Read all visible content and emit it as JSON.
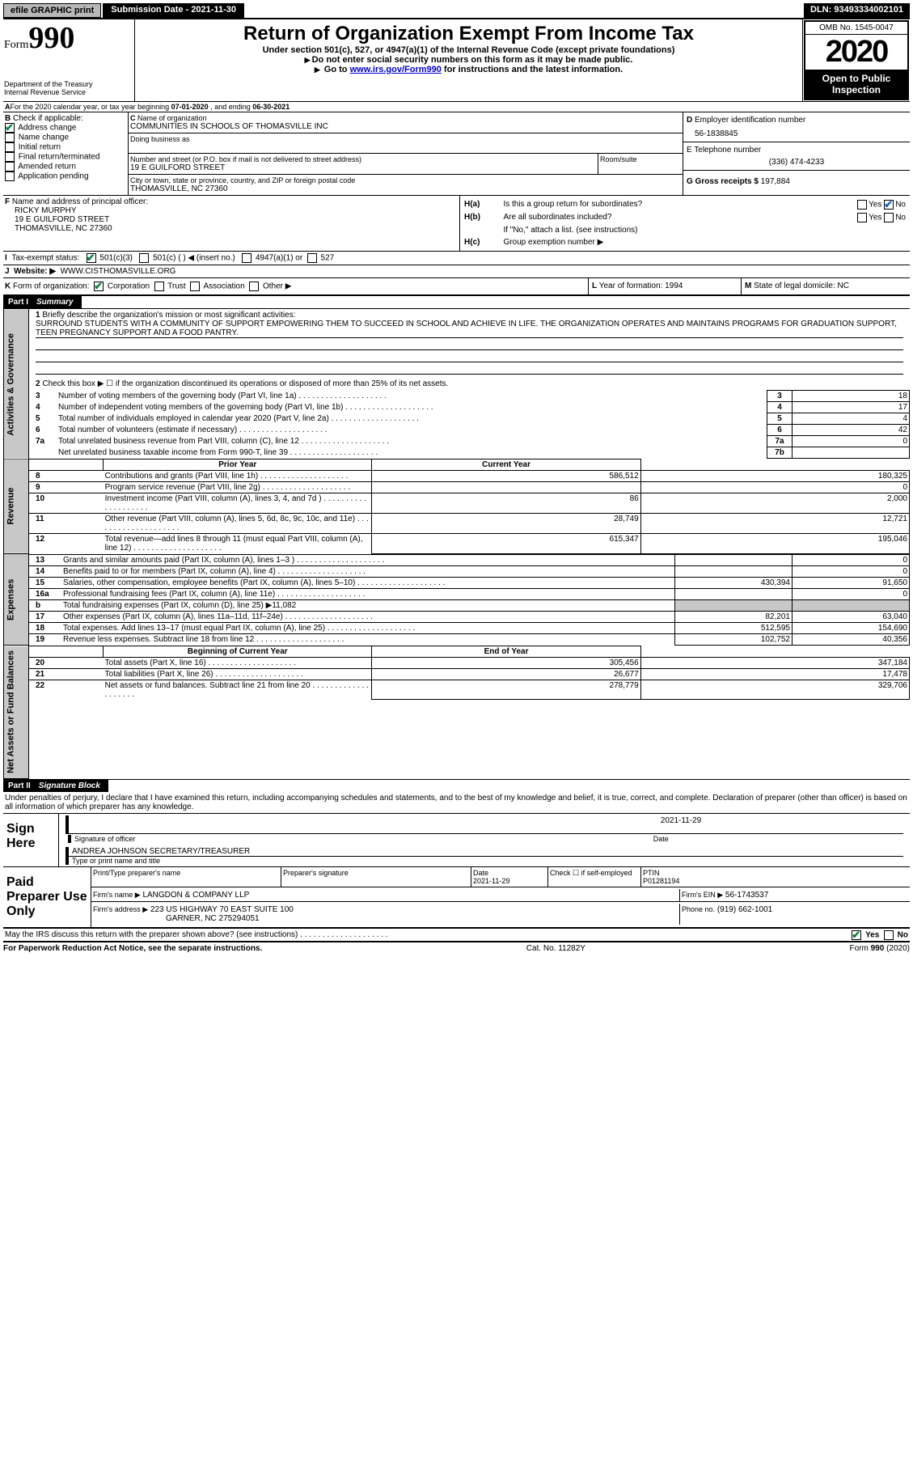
{
  "topbar": {
    "efile_label": "efile GRAPHIC print",
    "submission_label": "Submission Date - 2021-11-30",
    "dln_label": "DLN: 93493334002101"
  },
  "header": {
    "form_word": "Form",
    "form_num": "990",
    "dept": "Department of the Treasury",
    "irs": "Internal Revenue Service",
    "title": "Return of Organization Exempt From Income Tax",
    "subtitle": "Under section 501(c), 527, or 4947(a)(1) of the Internal Revenue Code (except private foundations)",
    "instr1": "Do not enter social security numbers on this form as it may be made public.",
    "instr2_pre": "Go to ",
    "instr2_link": "www.irs.gov/Form990",
    "instr2_post": " for instructions and the latest information.",
    "omb": "OMB No. 1545-0047",
    "year": "2020",
    "open": "Open to Public Inspection"
  },
  "periodA": {
    "text_pre": "For the 2020 calendar year, or tax year beginning ",
    "begin": "07-01-2020",
    "mid": " , and ending ",
    "end": "06-30-2021"
  },
  "boxB": {
    "label": "Check if applicable:",
    "items": [
      {
        "label": "Address change",
        "checked": true
      },
      {
        "label": "Name change",
        "checked": false
      },
      {
        "label": "Initial return",
        "checked": false
      },
      {
        "label": "Final return/terminated",
        "checked": false
      },
      {
        "label": "Amended return",
        "checked": false
      },
      {
        "label": "Application pending",
        "checked": false
      }
    ]
  },
  "boxC": {
    "name_label": "Name of organization",
    "name": "COMMUNITIES IN SCHOOLS OF THOMASVILLE INC",
    "dba_label": "Doing business as",
    "addr_label": "Number and street (or P.O. box if mail is not delivered to street address)",
    "room_label": "Room/suite",
    "addr": "19 E GUILFORD STREET",
    "city_label": "City or town, state or province, country, and ZIP or foreign postal code",
    "city": "THOMASVILLE, NC  27360"
  },
  "boxD": {
    "label": "Employer identification number",
    "val": "56-1838845"
  },
  "boxE": {
    "label": "E Telephone number",
    "val": "(336) 474-4233"
  },
  "boxG": {
    "label": "G Gross receipts $",
    "val": "197,884"
  },
  "boxF": {
    "label": "Name and address of principal officer:",
    "name": "RICKY MURPHY",
    "addr": "19 E GUILFORD STREET",
    "city": "THOMASVILLE, NC  27360"
  },
  "boxH": {
    "a_label": "Is this a group return for subordinates?",
    "a_yes": "Yes",
    "a_no": "No",
    "a_checked": "No",
    "b_label": "Are all subordinates included?",
    "b_note": "If \"No,\" attach a list. (see instructions)",
    "c_label": "Group exemption number ▶"
  },
  "rowI": {
    "label": "Tax-exempt status:",
    "opt1": "501(c)(3)",
    "opt1_checked": true,
    "opt2": "501(c) (   ) ◀ (insert no.)",
    "opt3": "4947(a)(1) or",
    "opt4": "527"
  },
  "rowJ": {
    "label": "Website: ▶",
    "val": "WWW.CISTHOMASVILLE.ORG"
  },
  "rowK": {
    "label": "Form of organization:",
    "corp": "Corporation",
    "corp_checked": true,
    "trust": "Trust",
    "assoc": "Association",
    "other": "Other ▶"
  },
  "rowL": {
    "label": "Year of formation:",
    "val": "1994"
  },
  "rowM": {
    "label": "State of legal domicile:",
    "val": "NC"
  },
  "part1": {
    "hdr": "Part I",
    "title": "Summary"
  },
  "p1": {
    "q1": "Briefly describe the organization's mission or most significant activities:",
    "mission": "SURROUND STUDENTS WITH A COMMUNITY OF SUPPORT EMPOWERING THEM TO SUCCEED IN SCHOOL AND ACHIEVE IN LIFE. THE ORGANIZATION OPERATES AND MAINTAINS PROGRAMS FOR GRADUATION SUPPORT, TEEN PREGNANCY SUPPORT AND A FOOD PANTRY.",
    "q2": "Check this box ▶ ☐  if the organization discontinued its operations or disposed of more than 25% of its net assets.",
    "rows": [
      {
        "n": "3",
        "label": "Number of voting members of the governing body (Part VI, line 1a)",
        "box": "3",
        "val": "18"
      },
      {
        "n": "4",
        "label": "Number of independent voting members of the governing body (Part VI, line 1b)",
        "box": "4",
        "val": "17"
      },
      {
        "n": "5",
        "label": "Total number of individuals employed in calendar year 2020 (Part V, line 2a)",
        "box": "5",
        "val": "4"
      },
      {
        "n": "6",
        "label": "Total number of volunteers (estimate if necessary)",
        "box": "6",
        "val": "42"
      },
      {
        "n": "7a",
        "label": "Total unrelated business revenue from Part VIII, column (C), line 12",
        "box": "7a",
        "val": "0"
      },
      {
        "n": "",
        "label": "Net unrelated business taxable income from Form 990-T, line 39",
        "box": "7b",
        "val": ""
      }
    ],
    "col_prior": "Prior Year",
    "col_curr": "Current Year",
    "revenue": [
      {
        "n": "8",
        "label": "Contributions and grants (Part VIII, line 1h)",
        "p": "586,512",
        "c": "180,325"
      },
      {
        "n": "9",
        "label": "Program service revenue (Part VIII, line 2g)",
        "p": "",
        "c": "0"
      },
      {
        "n": "10",
        "label": "Investment income (Part VIII, column (A), lines 3, 4, and 7d )",
        "p": "86",
        "c": "2,000"
      },
      {
        "n": "11",
        "label": "Other revenue (Part VIII, column (A), lines 5, 6d, 8c, 9c, 10c, and 11e)",
        "p": "28,749",
        "c": "12,721"
      },
      {
        "n": "12",
        "label": "Total revenue—add lines 8 through 11 (must equal Part VIII, column (A), line 12)",
        "p": "615,347",
        "c": "195,046"
      }
    ],
    "expenses": [
      {
        "n": "13",
        "label": "Grants and similar amounts paid (Part IX, column (A), lines 1–3 )",
        "p": "",
        "c": "0"
      },
      {
        "n": "14",
        "label": "Benefits paid to or for members (Part IX, column (A), line 4)",
        "p": "",
        "c": "0"
      },
      {
        "n": "15",
        "label": "Salaries, other compensation, employee benefits (Part IX, column (A), lines 5–10)",
        "p": "430,394",
        "c": "91,650"
      },
      {
        "n": "16a",
        "label": "Professional fundraising fees (Part IX, column (A), line 11e)",
        "p": "",
        "c": "0"
      },
      {
        "n": "b",
        "label": "Total fundraising expenses (Part IX, column (D), line 25) ▶11,082",
        "p": "GREY",
        "c": "GREY"
      },
      {
        "n": "17",
        "label": "Other expenses (Part IX, column (A), lines 11a–11d, 11f–24e)",
        "p": "82,201",
        "c": "63,040"
      },
      {
        "n": "18",
        "label": "Total expenses. Add lines 13–17 (must equal Part IX, column (A), line 25)",
        "p": "512,595",
        "c": "154,690"
      },
      {
        "n": "19",
        "label": "Revenue less expenses. Subtract line 18 from line 12",
        "p": "102,752",
        "c": "40,356"
      }
    ],
    "col_boy": "Beginning of Current Year",
    "col_eoy": "End of Year",
    "netassets": [
      {
        "n": "20",
        "label": "Total assets (Part X, line 16)",
        "p": "305,456",
        "c": "347,184"
      },
      {
        "n": "21",
        "label": "Total liabilities (Part X, line 26)",
        "p": "26,677",
        "c": "17,478"
      },
      {
        "n": "22",
        "label": "Net assets or fund balances. Subtract line 21 from line 20",
        "p": "278,779",
        "c": "329,706"
      }
    ],
    "vtabs": {
      "gov": "Activities & Governance",
      "rev": "Revenue",
      "exp": "Expenses",
      "net": "Net Assets or Fund Balances"
    }
  },
  "part2": {
    "hdr": "Part II",
    "title": "Signature Block",
    "decl": "Under penalties of perjury, I declare that I have examined this return, including accompanying schedules and statements, and to the best of my knowledge and belief, it is true, correct, and complete. Declaration of preparer (other than officer) is based on all information of which preparer has any knowledge."
  },
  "sign": {
    "side": "Sign Here",
    "sig_label": "Signature of officer",
    "date_label": "Date",
    "date": "2021-11-29",
    "name": "ANDREA JOHNSON  SECRETARY/TREASURER",
    "name_label": "Type or print name and title"
  },
  "prep": {
    "side": "Paid Preparer Use Only",
    "col1": "Print/Type preparer's name",
    "col2": "Preparer's signature",
    "col3": "Date",
    "date": "2021-11-29",
    "self": "Check ☐ if self-employed",
    "ptin_label": "PTIN",
    "ptin": "P01281194",
    "firm_label": "Firm's name   ▶",
    "firm": "LANGDON & COMPANY LLP",
    "ein_label": "Firm's EIN ▶",
    "ein": "56-1743537",
    "addr_label": "Firm's address ▶",
    "addr1": "223 US HIGHWAY 70 EAST SUITE 100",
    "addr2": "GARNER, NC  275294051",
    "phone_label": "Phone no.",
    "phone": "(919) 662-1001"
  },
  "discuss": {
    "q": "May the IRS discuss this return with the preparer shown above? (see instructions)",
    "yes": "Yes",
    "no": "No",
    "checked": "Yes"
  },
  "footer": {
    "left": "For Paperwork Reduction Act Notice, see the separate instructions.",
    "mid": "Cat. No. 11282Y",
    "right": "Form 990 (2020)"
  },
  "colors": {
    "link": "#0000cc",
    "grey": "#c8c8c8",
    "check": "#1a5fb4"
  }
}
